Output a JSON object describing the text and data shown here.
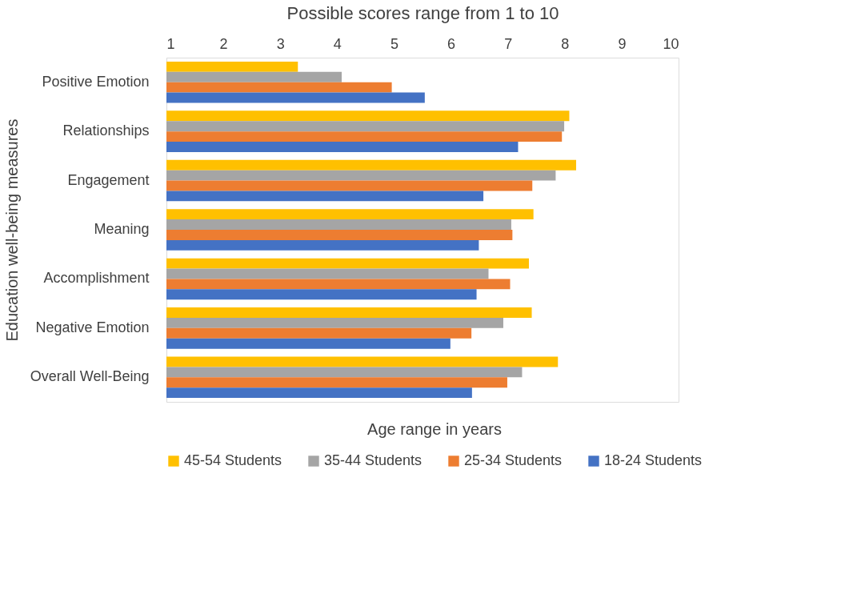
{
  "chart_data": {
    "type": "bar",
    "orientation": "horizontal",
    "xlabel": "Possible scores range from 1 to 10",
    "ylabel": "Education well-being measures",
    "legend_title": "Age range in years",
    "categories": [
      "Positive Emotion",
      "Relationships",
      "Engagement",
      "Meaning",
      "Accomplishment",
      "Negative Emotion",
      "Overall Well-Being"
    ],
    "series": [
      {
        "name": "45-54 Students",
        "color": "#ffc000",
        "values": [
          3.31,
          8.08,
          8.2,
          7.45,
          7.37,
          7.42,
          7.88
        ]
      },
      {
        "name": "35-44 Students",
        "color": "#a5a5a5",
        "values": [
          4.08,
          7.99,
          7.84,
          7.06,
          6.66,
          6.92,
          7.25
        ]
      },
      {
        "name": "25-34 Students",
        "color": "#ed7d31",
        "values": [
          4.96,
          7.95,
          7.43,
          7.08,
          7.04,
          6.36,
          6.99
        ]
      },
      {
        "name": "18-24 Students",
        "color": "#4472c4",
        "values": [
          5.54,
          7.18,
          6.57,
          6.49,
          6.45,
          5.99,
          6.37
        ]
      }
    ],
    "xlim": [
      1,
      10
    ],
    "xticks": [
      1,
      2,
      3,
      4,
      5,
      6,
      7,
      8,
      9,
      10
    ],
    "grid": false,
    "legend": "bottom"
  }
}
